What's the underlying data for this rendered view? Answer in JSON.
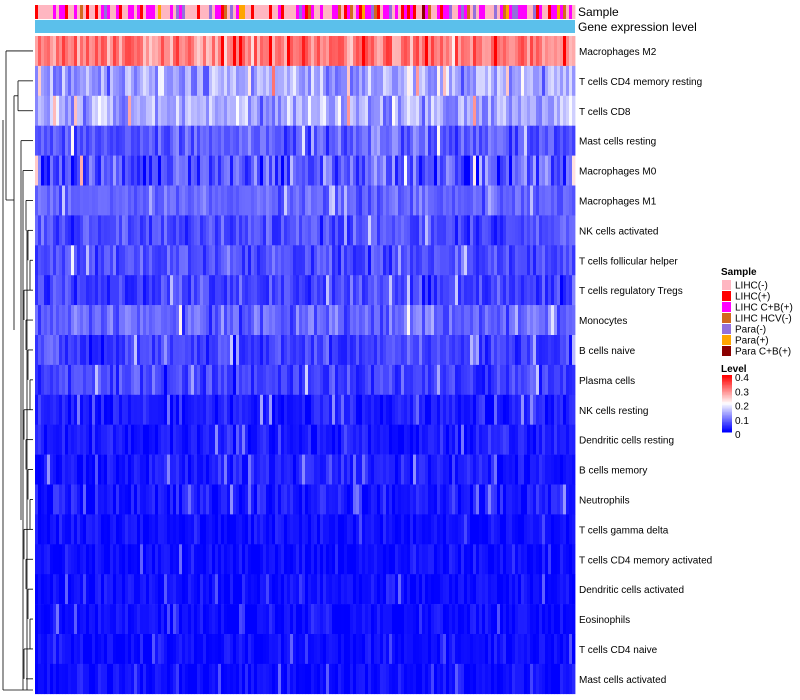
{
  "chart_data": {
    "type": "heatmap",
    "title": "",
    "annotation_tracks": [
      "Sample",
      "Gene expression level"
    ],
    "rows": [
      {
        "label": "Macrophages M2",
        "mean_level": 0.3,
        "spread": 0.08
      },
      {
        "label": "T cells CD4 memory resting",
        "mean_level": 0.13,
        "spread": 0.08
      },
      {
        "label": "T cells CD8",
        "mean_level": 0.13,
        "spread": 0.08
      },
      {
        "label": "Mast cells resting",
        "mean_level": 0.07,
        "spread": 0.06
      },
      {
        "label": "Macrophages M0",
        "mean_level": 0.06,
        "spread": 0.09
      },
      {
        "label": "Macrophages M1",
        "mean_level": 0.08,
        "spread": 0.04
      },
      {
        "label": "NK cells activated",
        "mean_level": 0.06,
        "spread": 0.05
      },
      {
        "label": "T cells follicular helper",
        "mean_level": 0.06,
        "spread": 0.05
      },
      {
        "label": "T cells regulatory  Tregs",
        "mean_level": 0.05,
        "spread": 0.05
      },
      {
        "label": "Monocytes",
        "mean_level": 0.08,
        "spread": 0.06
      },
      {
        "label": "B cells naive",
        "mean_level": 0.05,
        "spread": 0.05
      },
      {
        "label": "Plasma cells",
        "mean_level": 0.05,
        "spread": 0.05
      },
      {
        "label": "NK cells resting",
        "mean_level": 0.02,
        "spread": 0.04
      },
      {
        "label": "Dendritic cells resting",
        "mean_level": 0.02,
        "spread": 0.04
      },
      {
        "label": "B cells memory",
        "mean_level": 0.02,
        "spread": 0.04
      },
      {
        "label": "Neutrophils",
        "mean_level": 0.02,
        "spread": 0.04
      },
      {
        "label": "T cells gamma delta",
        "mean_level": 0.01,
        "spread": 0.03
      },
      {
        "label": "T cells CD4 memory activated",
        "mean_level": 0.01,
        "spread": 0.03
      },
      {
        "label": "Dendritic cells activated",
        "mean_level": 0.01,
        "spread": 0.03
      },
      {
        "label": "Eosinophils",
        "mean_level": 0.01,
        "spread": 0.03
      },
      {
        "label": "T cells CD4 naive",
        "mean_level": 0.01,
        "spread": 0.03
      },
      {
        "label": "Mast cells activated",
        "mean_level": 0.01,
        "spread": 0.03
      }
    ],
    "sample_legend": {
      "title": "Sample",
      "entries": [
        {
          "label": "LIHC(-)",
          "color": "#FFB6C1"
        },
        {
          "label": "LIHC(+)",
          "color": "#FF0000"
        },
        {
          "label": "LIHC C+B(+)",
          "color": "#FF00FF"
        },
        {
          "label": "LIHC HCV(-)",
          "color": "#D2691E"
        },
        {
          "label": "Para(-)",
          "color": "#9370DB"
        },
        {
          "label": "Para(+)",
          "color": "#FFA500"
        },
        {
          "label": "Para C+B(+)",
          "color": "#8B0000"
        }
      ]
    },
    "level_legend": {
      "title": "Level",
      "ticks": [
        "0.4",
        "0.3",
        "0.2",
        "0.1",
        "0"
      ],
      "range": [
        0,
        0.4
      ]
    },
    "gene_expression_color": "#5BC0EB",
    "colors": {
      "low": "#0000FF",
      "mid": "#FFFFFF",
      "high": "#FF0000"
    }
  }
}
